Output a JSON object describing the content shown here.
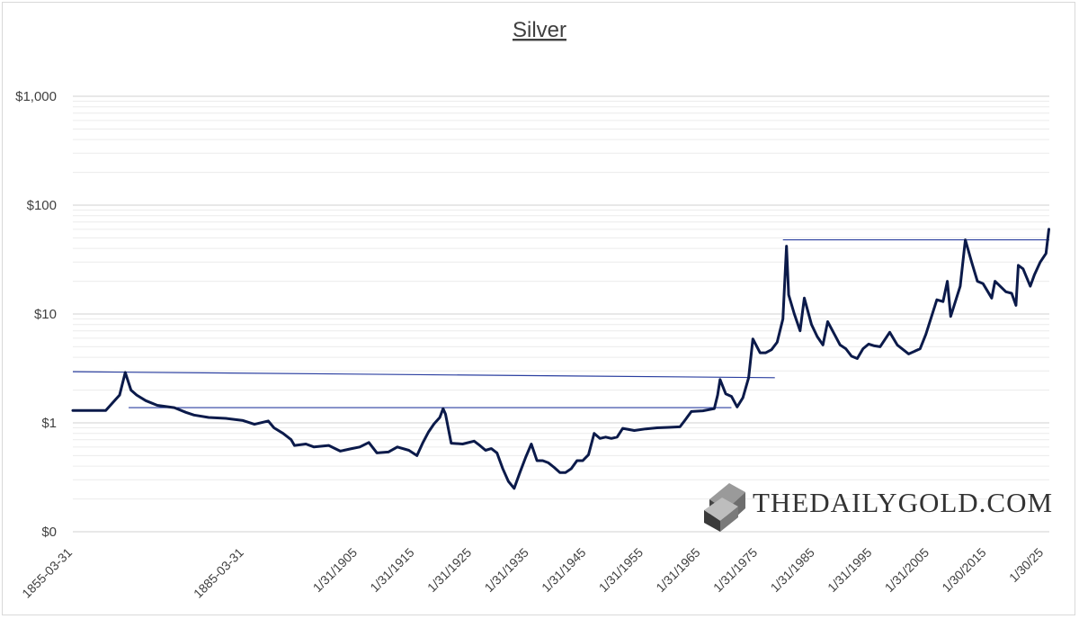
{
  "chart_data": {
    "type": "line",
    "title": "Silver",
    "y_scale": "log",
    "ylim": [
      0.1,
      1000
    ],
    "y_ticks": [
      {
        "value": 1000,
        "label": "$1,000"
      },
      {
        "value": 100,
        "label": "$100"
      },
      {
        "value": 10,
        "label": "$10"
      },
      {
        "value": 1,
        "label": "$1"
      },
      {
        "value": 0.1,
        "label": "$0"
      }
    ],
    "xlim": [
      "1855-03-31",
      "2026-01-01"
    ],
    "x_ticks": [
      {
        "date": "1855-03-31",
        "label": "1855-03-31"
      },
      {
        "date": "1885-03-31",
        "label": "1885-03-31"
      },
      {
        "date": "1905-01-31",
        "label": "1/31/1905"
      },
      {
        "date": "1915-01-31",
        "label": "1/31/1915"
      },
      {
        "date": "1925-01-31",
        "label": "1/31/1925"
      },
      {
        "date": "1935-01-31",
        "label": "1/31/1935"
      },
      {
        "date": "1945-01-31",
        "label": "1/31/1945"
      },
      {
        "date": "1955-01-31",
        "label": "1/31/1955"
      },
      {
        "date": "1965-01-31",
        "label": "1/31/1965"
      },
      {
        "date": "1975-01-31",
        "label": "1/31/1975"
      },
      {
        "date": "1985-01-31",
        "label": "1/31/1985"
      },
      {
        "date": "1995-01-31",
        "label": "1/31/1995"
      },
      {
        "date": "2005-01-31",
        "label": "1/31/2005"
      },
      {
        "date": "2015-01-30",
        "label": "1/30/2015"
      },
      {
        "date": "2025-01-30",
        "label": "1/30/25"
      }
    ],
    "grid": true,
    "legend": "none",
    "series": [
      {
        "color": "#0b1a4a",
        "points": [
          [
            "1855-03-31",
            1.3
          ],
          [
            "1858-01-01",
            1.3
          ],
          [
            "1861-01-01",
            1.3
          ],
          [
            "1863-06-01",
            1.8
          ],
          [
            "1864-06-01",
            2.9
          ],
          [
            "1865-06-01",
            2.0
          ],
          [
            "1866-06-01",
            1.8
          ],
          [
            "1868-01-01",
            1.6
          ],
          [
            "1870-01-01",
            1.45
          ],
          [
            "1873-01-01",
            1.38
          ],
          [
            "1875-01-01",
            1.25
          ],
          [
            "1876-06-01",
            1.18
          ],
          [
            "1879-01-01",
            1.12
          ],
          [
            "1882-01-01",
            1.1
          ],
          [
            "1885-01-01",
            1.05
          ],
          [
            "1887-01-01",
            0.97
          ],
          [
            "1889-06-01",
            1.04
          ],
          [
            "1890-06-01",
            0.9
          ],
          [
            "1892-01-01",
            0.8
          ],
          [
            "1893-06-01",
            0.7
          ],
          [
            "1894-01-01",
            0.62
          ],
          [
            "1896-01-01",
            0.64
          ],
          [
            "1897-06-01",
            0.6
          ],
          [
            "1900-01-01",
            0.62
          ],
          [
            "1902-01-01",
            0.55
          ],
          [
            "1904-01-01",
            0.58
          ],
          [
            "1905-06-01",
            0.6
          ],
          [
            "1907-01-01",
            0.66
          ],
          [
            "1908-06-01",
            0.53
          ],
          [
            "1910-06-01",
            0.54
          ],
          [
            "1912-01-01",
            0.6
          ],
          [
            "1914-01-01",
            0.56
          ],
          [
            "1915-06-01",
            0.5
          ],
          [
            "1916-06-01",
            0.65
          ],
          [
            "1917-06-01",
            0.82
          ],
          [
            "1918-06-01",
            0.98
          ],
          [
            "1919-06-01",
            1.12
          ],
          [
            "1920-01-01",
            1.35
          ],
          [
            "1920-06-01",
            1.2
          ],
          [
            "1921-06-01",
            0.65
          ],
          [
            "1923-06-01",
            0.64
          ],
          [
            "1925-06-01",
            0.68
          ],
          [
            "1926-06-01",
            0.62
          ],
          [
            "1927-06-01",
            0.56
          ],
          [
            "1928-06-01",
            0.58
          ],
          [
            "1929-06-01",
            0.53
          ],
          [
            "1930-06-01",
            0.38
          ],
          [
            "1931-06-01",
            0.29
          ],
          [
            "1932-06-01",
            0.25
          ],
          [
            "1933-06-01",
            0.35
          ],
          [
            "1934-06-01",
            0.48
          ],
          [
            "1935-06-01",
            0.64
          ],
          [
            "1936-06-01",
            0.45
          ],
          [
            "1937-06-01",
            0.45
          ],
          [
            "1938-06-01",
            0.43
          ],
          [
            "1939-06-01",
            0.39
          ],
          [
            "1940-06-01",
            0.35
          ],
          [
            "1941-06-01",
            0.35
          ],
          [
            "1942-06-01",
            0.38
          ],
          [
            "1943-06-01",
            0.45
          ],
          [
            "1944-06-01",
            0.45
          ],
          [
            "1945-06-01",
            0.51
          ],
          [
            "1946-06-01",
            0.8
          ],
          [
            "1947-06-01",
            0.72
          ],
          [
            "1948-06-01",
            0.74
          ],
          [
            "1949-06-01",
            0.72
          ],
          [
            "1950-06-01",
            0.74
          ],
          [
            "1951-06-01",
            0.89
          ],
          [
            "1953-06-01",
            0.85
          ],
          [
            "1955-06-01",
            0.88
          ],
          [
            "1957-06-01",
            0.9
          ],
          [
            "1959-06-01",
            0.91
          ],
          [
            "1961-06-01",
            0.92
          ],
          [
            "1962-06-01",
            1.08
          ],
          [
            "1963-06-01",
            1.27
          ],
          [
            "1965-06-01",
            1.29
          ],
          [
            "1967-06-01",
            1.35
          ],
          [
            "1968-01-01",
            1.8
          ],
          [
            "1968-06-01",
            2.5
          ],
          [
            "1969-06-01",
            1.85
          ],
          [
            "1970-06-01",
            1.75
          ],
          [
            "1971-06-01",
            1.4
          ],
          [
            "1972-06-01",
            1.7
          ],
          [
            "1973-06-01",
            2.6
          ],
          [
            "1974-03-01",
            5.9
          ],
          [
            "1975-06-01",
            4.4
          ],
          [
            "1976-06-01",
            4.4
          ],
          [
            "1977-06-01",
            4.7
          ],
          [
            "1978-06-01",
            5.5
          ],
          [
            "1979-06-01",
            9.0
          ],
          [
            "1980-01-18",
            42.0
          ],
          [
            "1980-06-01",
            15.0
          ],
          [
            "1981-06-01",
            10.0
          ],
          [
            "1982-06-01",
            7.0
          ],
          [
            "1983-03-01",
            14.0
          ],
          [
            "1984-06-01",
            8.0
          ],
          [
            "1985-06-01",
            6.2
          ],
          [
            "1986-06-01",
            5.2
          ],
          [
            "1987-04-01",
            8.5
          ],
          [
            "1988-06-01",
            6.5
          ],
          [
            "1989-06-01",
            5.2
          ],
          [
            "1990-06-01",
            4.8
          ],
          [
            "1991-06-01",
            4.1
          ],
          [
            "1992-06-01",
            3.9
          ],
          [
            "1993-06-01",
            4.8
          ],
          [
            "1994-06-01",
            5.3
          ],
          [
            "1995-06-01",
            5.1
          ],
          [
            "1996-06-01",
            5.0
          ],
          [
            "1998-02-01",
            6.8
          ],
          [
            "1999-06-01",
            5.2
          ],
          [
            "2001-06-01",
            4.3
          ],
          [
            "2003-06-01",
            4.8
          ],
          [
            "2004-06-01",
            6.5
          ],
          [
            "2006-05-01",
            13.5
          ],
          [
            "2007-06-01",
            13.0
          ],
          [
            "2008-03-01",
            20.0
          ],
          [
            "2008-10-01",
            9.5
          ],
          [
            "2010-06-01",
            18.0
          ],
          [
            "2011-04-28",
            48.0
          ],
          [
            "2012-06-01",
            30.0
          ],
          [
            "2013-06-01",
            20.0
          ],
          [
            "2014-06-01",
            19.0
          ],
          [
            "2015-12-01",
            14.0
          ],
          [
            "2016-07-01",
            20.0
          ],
          [
            "2018-06-01",
            16.0
          ],
          [
            "2019-06-01",
            15.5
          ],
          [
            "2020-03-01",
            12.0
          ],
          [
            "2020-08-01",
            28.0
          ],
          [
            "2021-06-01",
            26.0
          ],
          [
            "2022-09-01",
            18.0
          ],
          [
            "2023-06-01",
            23.0
          ],
          [
            "2024-06-01",
            30.0
          ],
          [
            "2025-06-01",
            36.0
          ],
          [
            "2025-12-01",
            60.0
          ]
        ]
      }
    ],
    "reference_lines": [
      {
        "from": [
          "1855-03-31",
          2.95
        ],
        "to": [
          "1978-01-01",
          2.6
        ],
        "color": "#2b3fa0"
      },
      {
        "from": [
          "1865-01-01",
          1.38
        ],
        "to": [
          "1970-06-01",
          1.38
        ],
        "color": "#2b3fa0"
      },
      {
        "from": [
          "1979-06-01",
          48.0
        ],
        "to": [
          "2026-01-01",
          48.0
        ],
        "color": "#2b3fa0"
      }
    ]
  },
  "watermark": {
    "text": "THEDAILYGOLD.COM",
    "icon": "gold-bar-logo"
  }
}
